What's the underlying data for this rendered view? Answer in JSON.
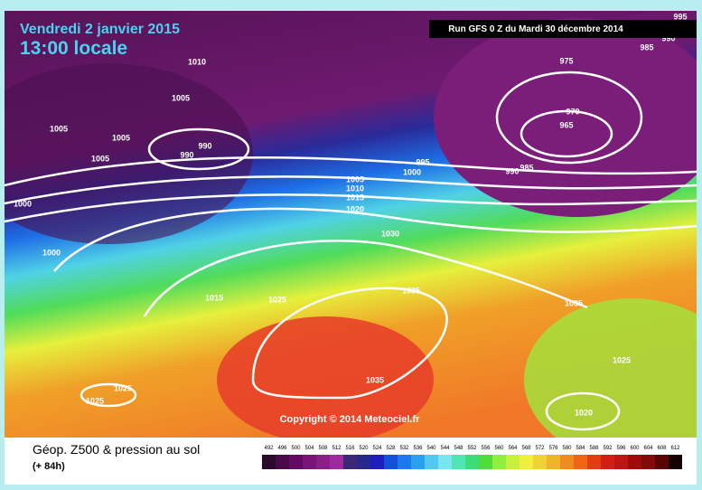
{
  "header": {
    "date": "Vendredi 2 janvier 2015",
    "time": "13:00 locale",
    "run": "Run GFS 0 Z du Mardi 30 décembre 2014"
  },
  "isobar_labels": [
    1010,
    1005,
    1005,
    1005,
    1005,
    990,
    990,
    1000,
    1000,
    995,
    1000,
    1005,
    1010,
    1015,
    1020,
    1030,
    990,
    985,
    975,
    970,
    965,
    985,
    995,
    990,
    1015,
    1025,
    1035,
    1035,
    1025,
    1025,
    1025,
    1035,
    1020
  ],
  "copyright": "Copyright © 2014 Meteociel.fr",
  "legend": {
    "title": "Géop. Z500 & pression au sol",
    "subtitle": "(+ 84h)",
    "ticks": [
      492,
      496,
      500,
      504,
      508,
      512,
      516,
      520,
      524,
      528,
      532,
      536,
      540,
      544,
      548,
      552,
      556,
      560,
      564,
      568,
      572,
      576,
      580,
      584,
      588,
      592,
      596,
      600,
      604,
      608,
      612
    ],
    "colors": [
      "#2a0a2a",
      "#4a0a4a",
      "#640a64",
      "#7a1478",
      "#8c1e8c",
      "#a028a0",
      "#3c2878",
      "#28288c",
      "#1e1ebe",
      "#1450dc",
      "#1e78f0",
      "#28a0f0",
      "#50c8f0",
      "#78e6f0",
      "#50e6b4",
      "#3cdc78",
      "#50dc3c",
      "#8cf03c",
      "#c8f03c",
      "#f0f03c",
      "#f0d232",
      "#f0b428",
      "#f08c1e",
      "#f06414",
      "#e63c14",
      "#d21e14",
      "#be1414",
      "#a00a0a",
      "#820a0a",
      "#5a0505",
      "#140000"
    ]
  }
}
